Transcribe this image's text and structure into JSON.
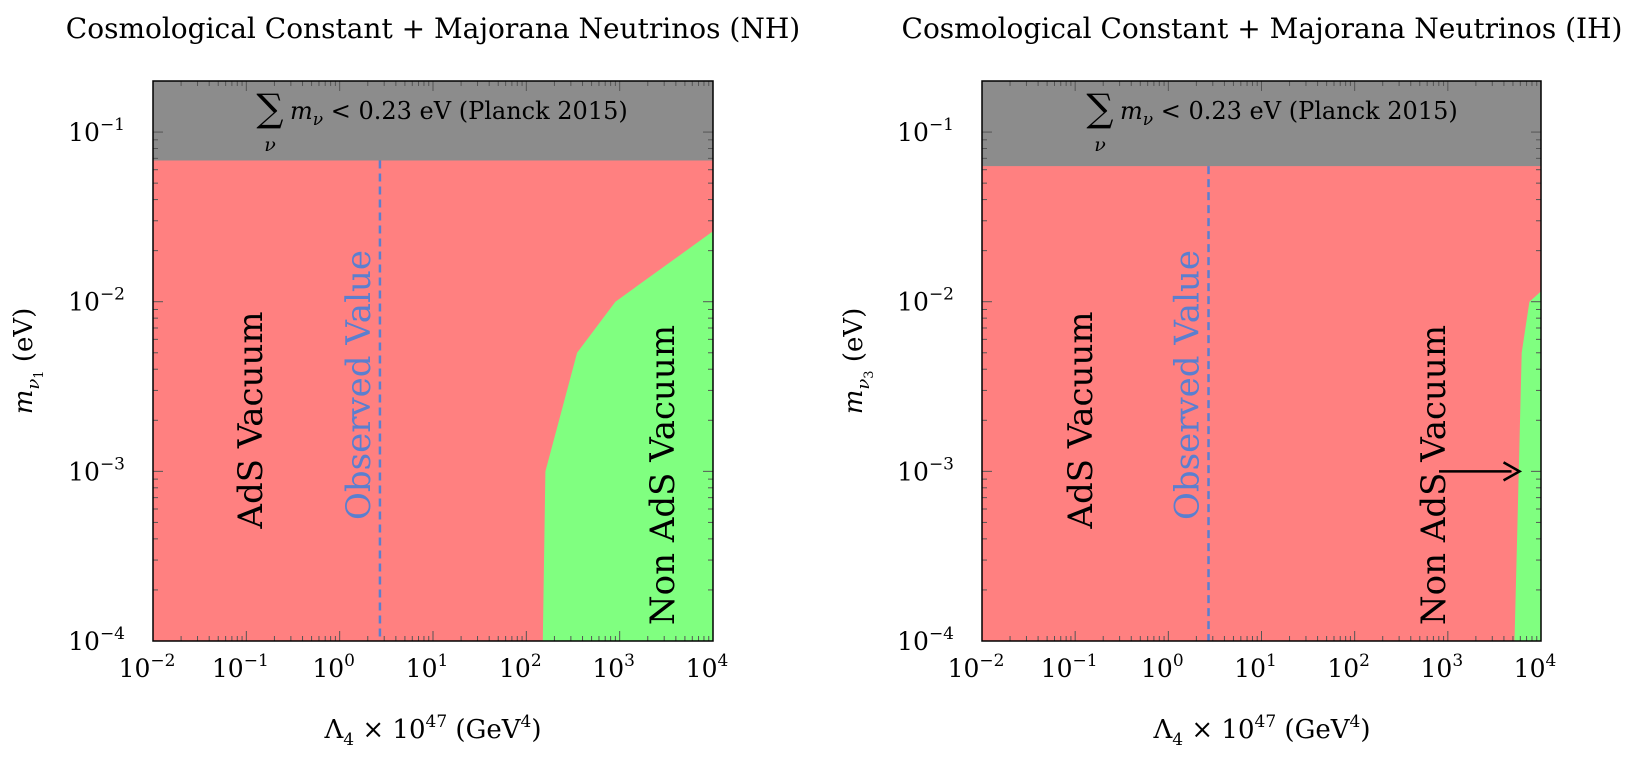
{
  "colors": {
    "ads": "#ff8080",
    "non_ads": "#80ff80",
    "planck": "#8c8c8c",
    "observed": "#5b7fcf"
  },
  "chart_data": [
    {
      "type": "area",
      "title": "Cosmological Constant + Majorana Neutrinos (NH)",
      "xlabel": "Λ₄ × 10^47 (GeV⁴)",
      "ylabel": "m_ν₁ (eV)",
      "xscale": "log",
      "yscale": "log",
      "xlim": [
        0.01,
        10000
      ],
      "ylim": [
        0.0001,
        0.2
      ],
      "xticks": [
        0.01,
        0.1,
        1,
        10,
        100,
        1000,
        10000
      ],
      "xtick_labels": [
        {
          "base": "10",
          "exp": "−2"
        },
        {
          "base": "10",
          "exp": "−1"
        },
        {
          "base": "10",
          "exp": "0"
        },
        {
          "base": "10",
          "exp": "1"
        },
        {
          "base": "10",
          "exp": "2"
        },
        {
          "base": "10",
          "exp": "3"
        },
        {
          "base": "10",
          "exp": "4"
        }
      ],
      "yticks": [
        0.0001,
        0.001,
        0.01,
        0.1
      ],
      "ytick_labels": [
        {
          "base": "10",
          "exp": "−4"
        },
        {
          "base": "10",
          "exp": "−3"
        },
        {
          "base": "10",
          "exp": "−2"
        },
        {
          "base": "10",
          "exp": "−1"
        }
      ],
      "planck_limit_y": 0.068,
      "planck_label": "∑ m_ν < 0.23 eV (Planck 2015)",
      "observed_value_x": 2.7,
      "observed_label": "Observed Value",
      "ads_label": "AdS Vacuum",
      "non_ads_label": "Non AdS Vacuum",
      "non_ads_boundary": [
        {
          "x": 150,
          "y": 0.0001
        },
        {
          "x": 160,
          "y": 0.001
        },
        {
          "x": 350,
          "y": 0.005
        },
        {
          "x": 900,
          "y": 0.01
        },
        {
          "x": 10000,
          "y": 0.026
        }
      ]
    },
    {
      "type": "area",
      "title": "Cosmological Constant + Majorana Neutrinos (IH)",
      "xlabel": "Λ₄ × 10^47 (GeV⁴)",
      "ylabel": "m_ν₃ (eV)",
      "xscale": "log",
      "yscale": "log",
      "xlim": [
        0.01,
        10000
      ],
      "ylim": [
        0.0001,
        0.2
      ],
      "xticks": [
        0.01,
        0.1,
        1,
        10,
        100,
        1000,
        10000
      ],
      "xtick_labels": [
        {
          "base": "10",
          "exp": "−2"
        },
        {
          "base": "10",
          "exp": "−1"
        },
        {
          "base": "10",
          "exp": "0"
        },
        {
          "base": "10",
          "exp": "1"
        },
        {
          "base": "10",
          "exp": "2"
        },
        {
          "base": "10",
          "exp": "3"
        },
        {
          "base": "10",
          "exp": "4"
        }
      ],
      "yticks": [
        0.0001,
        0.001,
        0.01,
        0.1
      ],
      "ytick_labels": [
        {
          "base": "10",
          "exp": "−4"
        },
        {
          "base": "10",
          "exp": "−3"
        },
        {
          "base": "10",
          "exp": "−2"
        },
        {
          "base": "10",
          "exp": "−1"
        }
      ],
      "planck_limit_y": 0.063,
      "planck_label": "∑ m_ν < 0.23 eV (Planck 2015)",
      "observed_value_x": 2.7,
      "observed_label": "Observed Value",
      "ads_label": "AdS Vacuum",
      "non_ads_label": "Non AdS Vacuum",
      "non_ads_boundary": [
        {
          "x": 5200,
          "y": 0.0001
        },
        {
          "x": 5600,
          "y": 0.0005
        },
        {
          "x": 6200,
          "y": 0.005
        },
        {
          "x": 7500,
          "y": 0.01
        },
        {
          "x": 10000,
          "y": 0.0115
        }
      ],
      "arrow_y": 0.001
    }
  ]
}
